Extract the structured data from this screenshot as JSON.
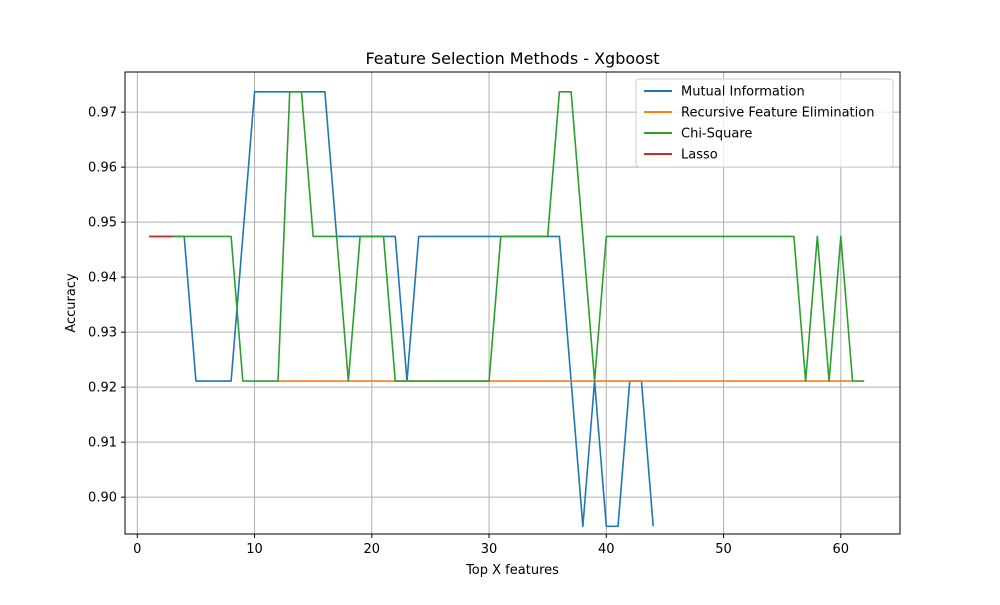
{
  "chart_data": {
    "type": "line",
    "title": "Feature Selection Methods - Xgboost",
    "xlabel": "Top X features",
    "ylabel": "Accuracy",
    "xlim": [
      -1.05,
      65.05
    ],
    "ylim": [
      0.8933,
      0.9773
    ],
    "xticks": [
      0,
      10,
      20,
      30,
      40,
      50,
      60
    ],
    "xtick_labels": [
      "0",
      "10",
      "20",
      "30",
      "40",
      "50",
      "60"
    ],
    "yticks": [
      0.9,
      0.91,
      0.92,
      0.93,
      0.94,
      0.95,
      0.96,
      0.97
    ],
    "ytick_labels": [
      "0.90",
      "0.91",
      "0.92",
      "0.93",
      "0.94",
      "0.95",
      "0.96",
      "0.97"
    ],
    "grid": true,
    "legend_position": "top-right",
    "series": [
      {
        "name": "Mutual Information",
        "color": "#1f77b4",
        "x": [
          1,
          2,
          3,
          4,
          5,
          6,
          7,
          8,
          9,
          10,
          11,
          12,
          13,
          14,
          15,
          16,
          17,
          18,
          19,
          20,
          21,
          22,
          23,
          24,
          25,
          26,
          27,
          28,
          29,
          30,
          31,
          32,
          33,
          34,
          35,
          36,
          37,
          38,
          39,
          40,
          41,
          42,
          43,
          44
        ],
        "y": [
          0.9474,
          0.9474,
          0.9474,
          0.9474,
          0.9211,
          0.9211,
          0.9211,
          0.9211,
          0.9474,
          0.9737,
          0.9737,
          0.9737,
          0.9737,
          0.9737,
          0.9737,
          0.9737,
          0.9474,
          0.9474,
          0.9474,
          0.9474,
          0.9474,
          0.9474,
          0.9211,
          0.9474,
          0.9474,
          0.9474,
          0.9474,
          0.9474,
          0.9474,
          0.9474,
          0.9474,
          0.9474,
          0.9474,
          0.9474,
          0.9474,
          0.9474,
          0.9211,
          0.8947,
          0.9211,
          0.8947,
          0.8947,
          0.9211,
          0.9211,
          0.8947
        ]
      },
      {
        "name": "Recursive Feature Elimination",
        "color": "#ff7f0e",
        "x": [
          12,
          13,
          14,
          15,
          16,
          17,
          18,
          19,
          20,
          21,
          22,
          23,
          24,
          25,
          26,
          27,
          28,
          29,
          30,
          31,
          32,
          33,
          34,
          35,
          36,
          37,
          38,
          39,
          40,
          41,
          42,
          43,
          44,
          45,
          46,
          47,
          48,
          49,
          50,
          51,
          52,
          53,
          54,
          55,
          56,
          57,
          58,
          59,
          60,
          61
        ],
        "y": [
          0.9211,
          0.9211,
          0.9211,
          0.9211,
          0.9211,
          0.9211,
          0.9211,
          0.9211,
          0.9211,
          0.9211,
          0.9211,
          0.9211,
          0.9211,
          0.9211,
          0.9211,
          0.9211,
          0.9211,
          0.9211,
          0.9211,
          0.9211,
          0.9211,
          0.9211,
          0.9211,
          0.9211,
          0.9211,
          0.9211,
          0.9211,
          0.9211,
          0.9211,
          0.9211,
          0.9211,
          0.9211,
          0.9211,
          0.9211,
          0.9211,
          0.9211,
          0.9211,
          0.9211,
          0.9211,
          0.9211,
          0.9211,
          0.9211,
          0.9211,
          0.9211,
          0.9211,
          0.9211,
          0.9211,
          0.9211,
          0.9211,
          0.9211
        ]
      },
      {
        "name": "Chi-Square",
        "color": "#2ca02c",
        "x": [
          3,
          4,
          5,
          6,
          7,
          8,
          9,
          10,
          11,
          12,
          13,
          14,
          15,
          16,
          17,
          18,
          19,
          20,
          21,
          22,
          23,
          24,
          25,
          26,
          27,
          28,
          29,
          30,
          31,
          32,
          33,
          34,
          35,
          36,
          37,
          38,
          39,
          40,
          41,
          42,
          43,
          44,
          45,
          46,
          47,
          48,
          49,
          50,
          51,
          52,
          53,
          54,
          55,
          56,
          57,
          58,
          59,
          60,
          61,
          62
        ],
        "y": [
          0.9474,
          0.9474,
          0.9474,
          0.9474,
          0.9474,
          0.9474,
          0.9211,
          0.9211,
          0.9211,
          0.9211,
          0.9737,
          0.9737,
          0.9474,
          0.9474,
          0.9474,
          0.9211,
          0.9474,
          0.9474,
          0.9474,
          0.9211,
          0.9211,
          0.9211,
          0.9211,
          0.9211,
          0.9211,
          0.9211,
          0.9211,
          0.9211,
          0.9474,
          0.9474,
          0.9474,
          0.9474,
          0.9474,
          0.9737,
          0.9737,
          0.9474,
          0.9211,
          0.9474,
          0.9474,
          0.9474,
          0.9474,
          0.9474,
          0.9474,
          0.9474,
          0.9474,
          0.9474,
          0.9474,
          0.9474,
          0.9474,
          0.9474,
          0.9474,
          0.9474,
          0.9474,
          0.9474,
          0.9211,
          0.9474,
          0.9211,
          0.9474,
          0.9211,
          0.9211
        ]
      },
      {
        "name": "Lasso",
        "color": "#d62728",
        "x": [
          1,
          2,
          3
        ],
        "y": [
          0.9474,
          0.9474,
          0.9474
        ]
      }
    ]
  }
}
